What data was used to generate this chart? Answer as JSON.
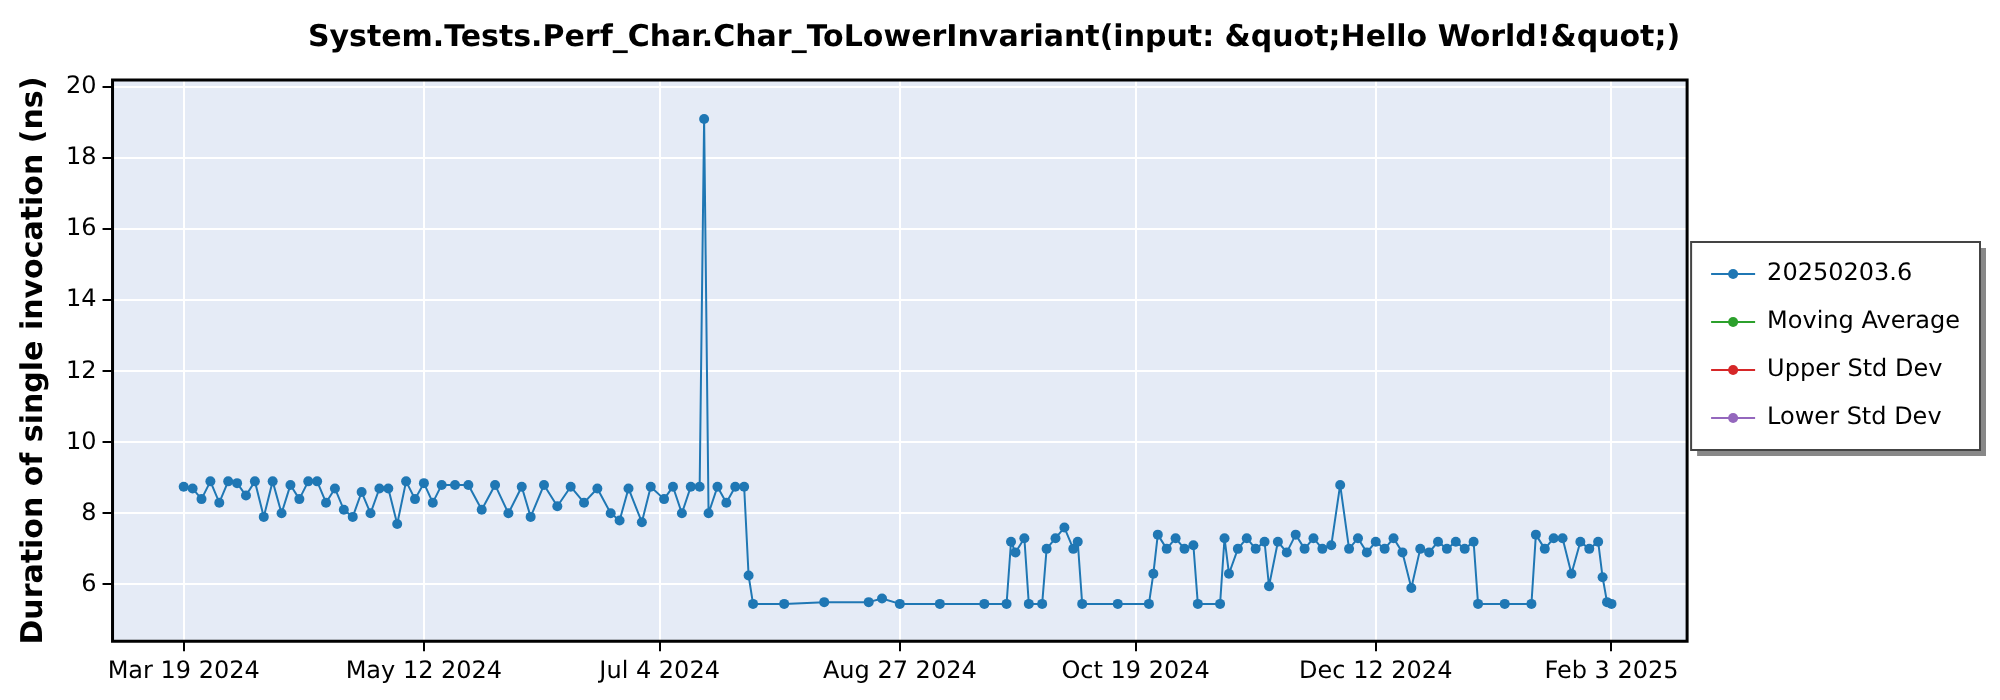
{
  "chart_data": {
    "type": "line",
    "title": "System.Tests.Perf_Char.Char_ToLowerInvariant(input: &quot;Hello World!&quot;)",
    "ylabel": "Duration of single invocation (ns)",
    "xlim": [
      "2024-03-03",
      "2025-02-20"
    ],
    "xticks": [
      {
        "value": "2024-03-19",
        "label": "Mar 19 2024"
      },
      {
        "value": "2024-05-12",
        "label": "May 12 2024"
      },
      {
        "value": "2024-07-04",
        "label": "Jul 4 2024"
      },
      {
        "value": "2024-08-27",
        "label": "Aug 27 2024"
      },
      {
        "value": "2024-10-19",
        "label": "Oct 19 2024"
      },
      {
        "value": "2024-12-12",
        "label": "Dec 12 2024"
      },
      {
        "value": "2025-02-03",
        "label": "Feb 3 2025"
      }
    ],
    "ylim": [
      4.4,
      20.2
    ],
    "yticks": [
      6,
      8,
      10,
      12,
      14,
      16,
      18,
      20
    ],
    "grid": true,
    "legend": "right",
    "marker": "circle",
    "line_style": "solid",
    "series": [
      {
        "name": "20250203.6",
        "color": "#1f77b4",
        "x": [
          "2024-03-19",
          "2024-03-21",
          "2024-03-23",
          "2024-03-25",
          "2024-03-27",
          "2024-03-29",
          "2024-03-31",
          "2024-04-02",
          "2024-04-04",
          "2024-04-06",
          "2024-04-08",
          "2024-04-10",
          "2024-04-12",
          "2024-04-14",
          "2024-04-16",
          "2024-04-18",
          "2024-04-20",
          "2024-04-22",
          "2024-04-24",
          "2024-04-26",
          "2024-04-28",
          "2024-04-30",
          "2024-05-02",
          "2024-05-04",
          "2024-05-06",
          "2024-05-08",
          "2024-05-10",
          "2024-05-12",
          "2024-05-14",
          "2024-05-16",
          "2024-05-19",
          "2024-05-22",
          "2024-05-25",
          "2024-05-28",
          "2024-05-31",
          "2024-06-03",
          "2024-06-05",
          "2024-06-08",
          "2024-06-11",
          "2024-06-14",
          "2024-06-17",
          "2024-06-20",
          "2024-06-23",
          "2024-06-25",
          "2024-06-27",
          "2024-06-30",
          "2024-07-02",
          "2024-07-05",
          "2024-07-07",
          "2024-07-09",
          "2024-07-11",
          "2024-07-13",
          "2024-07-14",
          "2024-07-15",
          "2024-07-17",
          "2024-07-19",
          "2024-07-21",
          "2024-07-23",
          "2024-07-24",
          "2024-07-25",
          "2024-08-01",
          "2024-08-10",
          "2024-08-20",
          "2024-08-23",
          "2024-08-27",
          "2024-09-05",
          "2024-09-15",
          "2024-09-20",
          "2024-09-21",
          "2024-09-22",
          "2024-09-24",
          "2024-09-25",
          "2024-09-28",
          "2024-09-29",
          "2024-10-01",
          "2024-10-03",
          "2024-10-05",
          "2024-10-06",
          "2024-10-07",
          "2024-10-15",
          "2024-10-22",
          "2024-10-23",
          "2024-10-24",
          "2024-10-26",
          "2024-10-28",
          "2024-10-30",
          "2024-11-01",
          "2024-11-02",
          "2024-11-07",
          "2024-11-08",
          "2024-11-09",
          "2024-11-11",
          "2024-11-13",
          "2024-11-15",
          "2024-11-17",
          "2024-11-18",
          "2024-11-20",
          "2024-11-22",
          "2024-11-24",
          "2024-11-26",
          "2024-11-28",
          "2024-11-30",
          "2024-12-02",
          "2024-12-04",
          "2024-12-06",
          "2024-12-08",
          "2024-12-10",
          "2024-12-12",
          "2024-12-14",
          "2024-12-16",
          "2024-12-18",
          "2024-12-20",
          "2024-12-22",
          "2024-12-24",
          "2024-12-26",
          "2024-12-28",
          "2024-12-30",
          "2025-01-01",
          "2025-01-03",
          "2025-01-04",
          "2025-01-10",
          "2025-01-16",
          "2025-01-17",
          "2025-01-19",
          "2025-01-21",
          "2025-01-23",
          "2025-01-25",
          "2025-01-27",
          "2025-01-29",
          "2025-01-31",
          "2025-02-01",
          "2025-02-02",
          "2025-02-03"
        ],
        "values": [
          8.75,
          8.7,
          8.4,
          8.9,
          8.3,
          8.9,
          8.85,
          8.5,
          8.9,
          7.9,
          8.9,
          8.0,
          8.8,
          8.4,
          8.9,
          8.9,
          8.3,
          8.7,
          8.1,
          7.9,
          8.6,
          8.0,
          8.7,
          8.7,
          7.7,
          8.9,
          8.4,
          8.85,
          8.3,
          8.8,
          8.8,
          8.8,
          8.1,
          8.8,
          8.0,
          8.75,
          7.9,
          8.8,
          8.2,
          8.75,
          8.3,
          8.7,
          8.0,
          7.8,
          8.7,
          7.75,
          8.75,
          8.4,
          8.75,
          8.0,
          8.75,
          8.75,
          19.1,
          8.0,
          8.75,
          8.3,
          8.75,
          8.75,
          6.25,
          5.45,
          5.45,
          5.5,
          5.5,
          5.6,
          5.45,
          5.45,
          5.45,
          5.45,
          7.2,
          6.9,
          7.3,
          5.45,
          5.45,
          7.0,
          7.3,
          7.6,
          7.0,
          7.2,
          5.45,
          5.45,
          5.45,
          6.3,
          7.4,
          7.0,
          7.3,
          7.0,
          7.1,
          5.45,
          5.45,
          7.3,
          6.3,
          7.0,
          7.3,
          7.0,
          7.2,
          5.95,
          7.2,
          6.9,
          7.4,
          7.0,
          7.3,
          7.0,
          7.1,
          8.8,
          7.0,
          7.3,
          6.9,
          7.2,
          7.0,
          7.3,
          6.9,
          5.9,
          7.0,
          6.9,
          7.2,
          7.0,
          7.2,
          7.0,
          7.2,
          5.45,
          5.45,
          5.45,
          7.4,
          7.0,
          7.3,
          7.3,
          6.3,
          7.2,
          7.0,
          7.2,
          6.2,
          5.5,
          5.45
        ]
      },
      {
        "name": "Moving Average",
        "color": "#2ca02c"
      },
      {
        "name": "Upper Std Dev",
        "color": "#d62728"
      },
      {
        "name": "Lower Std Dev",
        "color": "#9467bd"
      }
    ]
  }
}
